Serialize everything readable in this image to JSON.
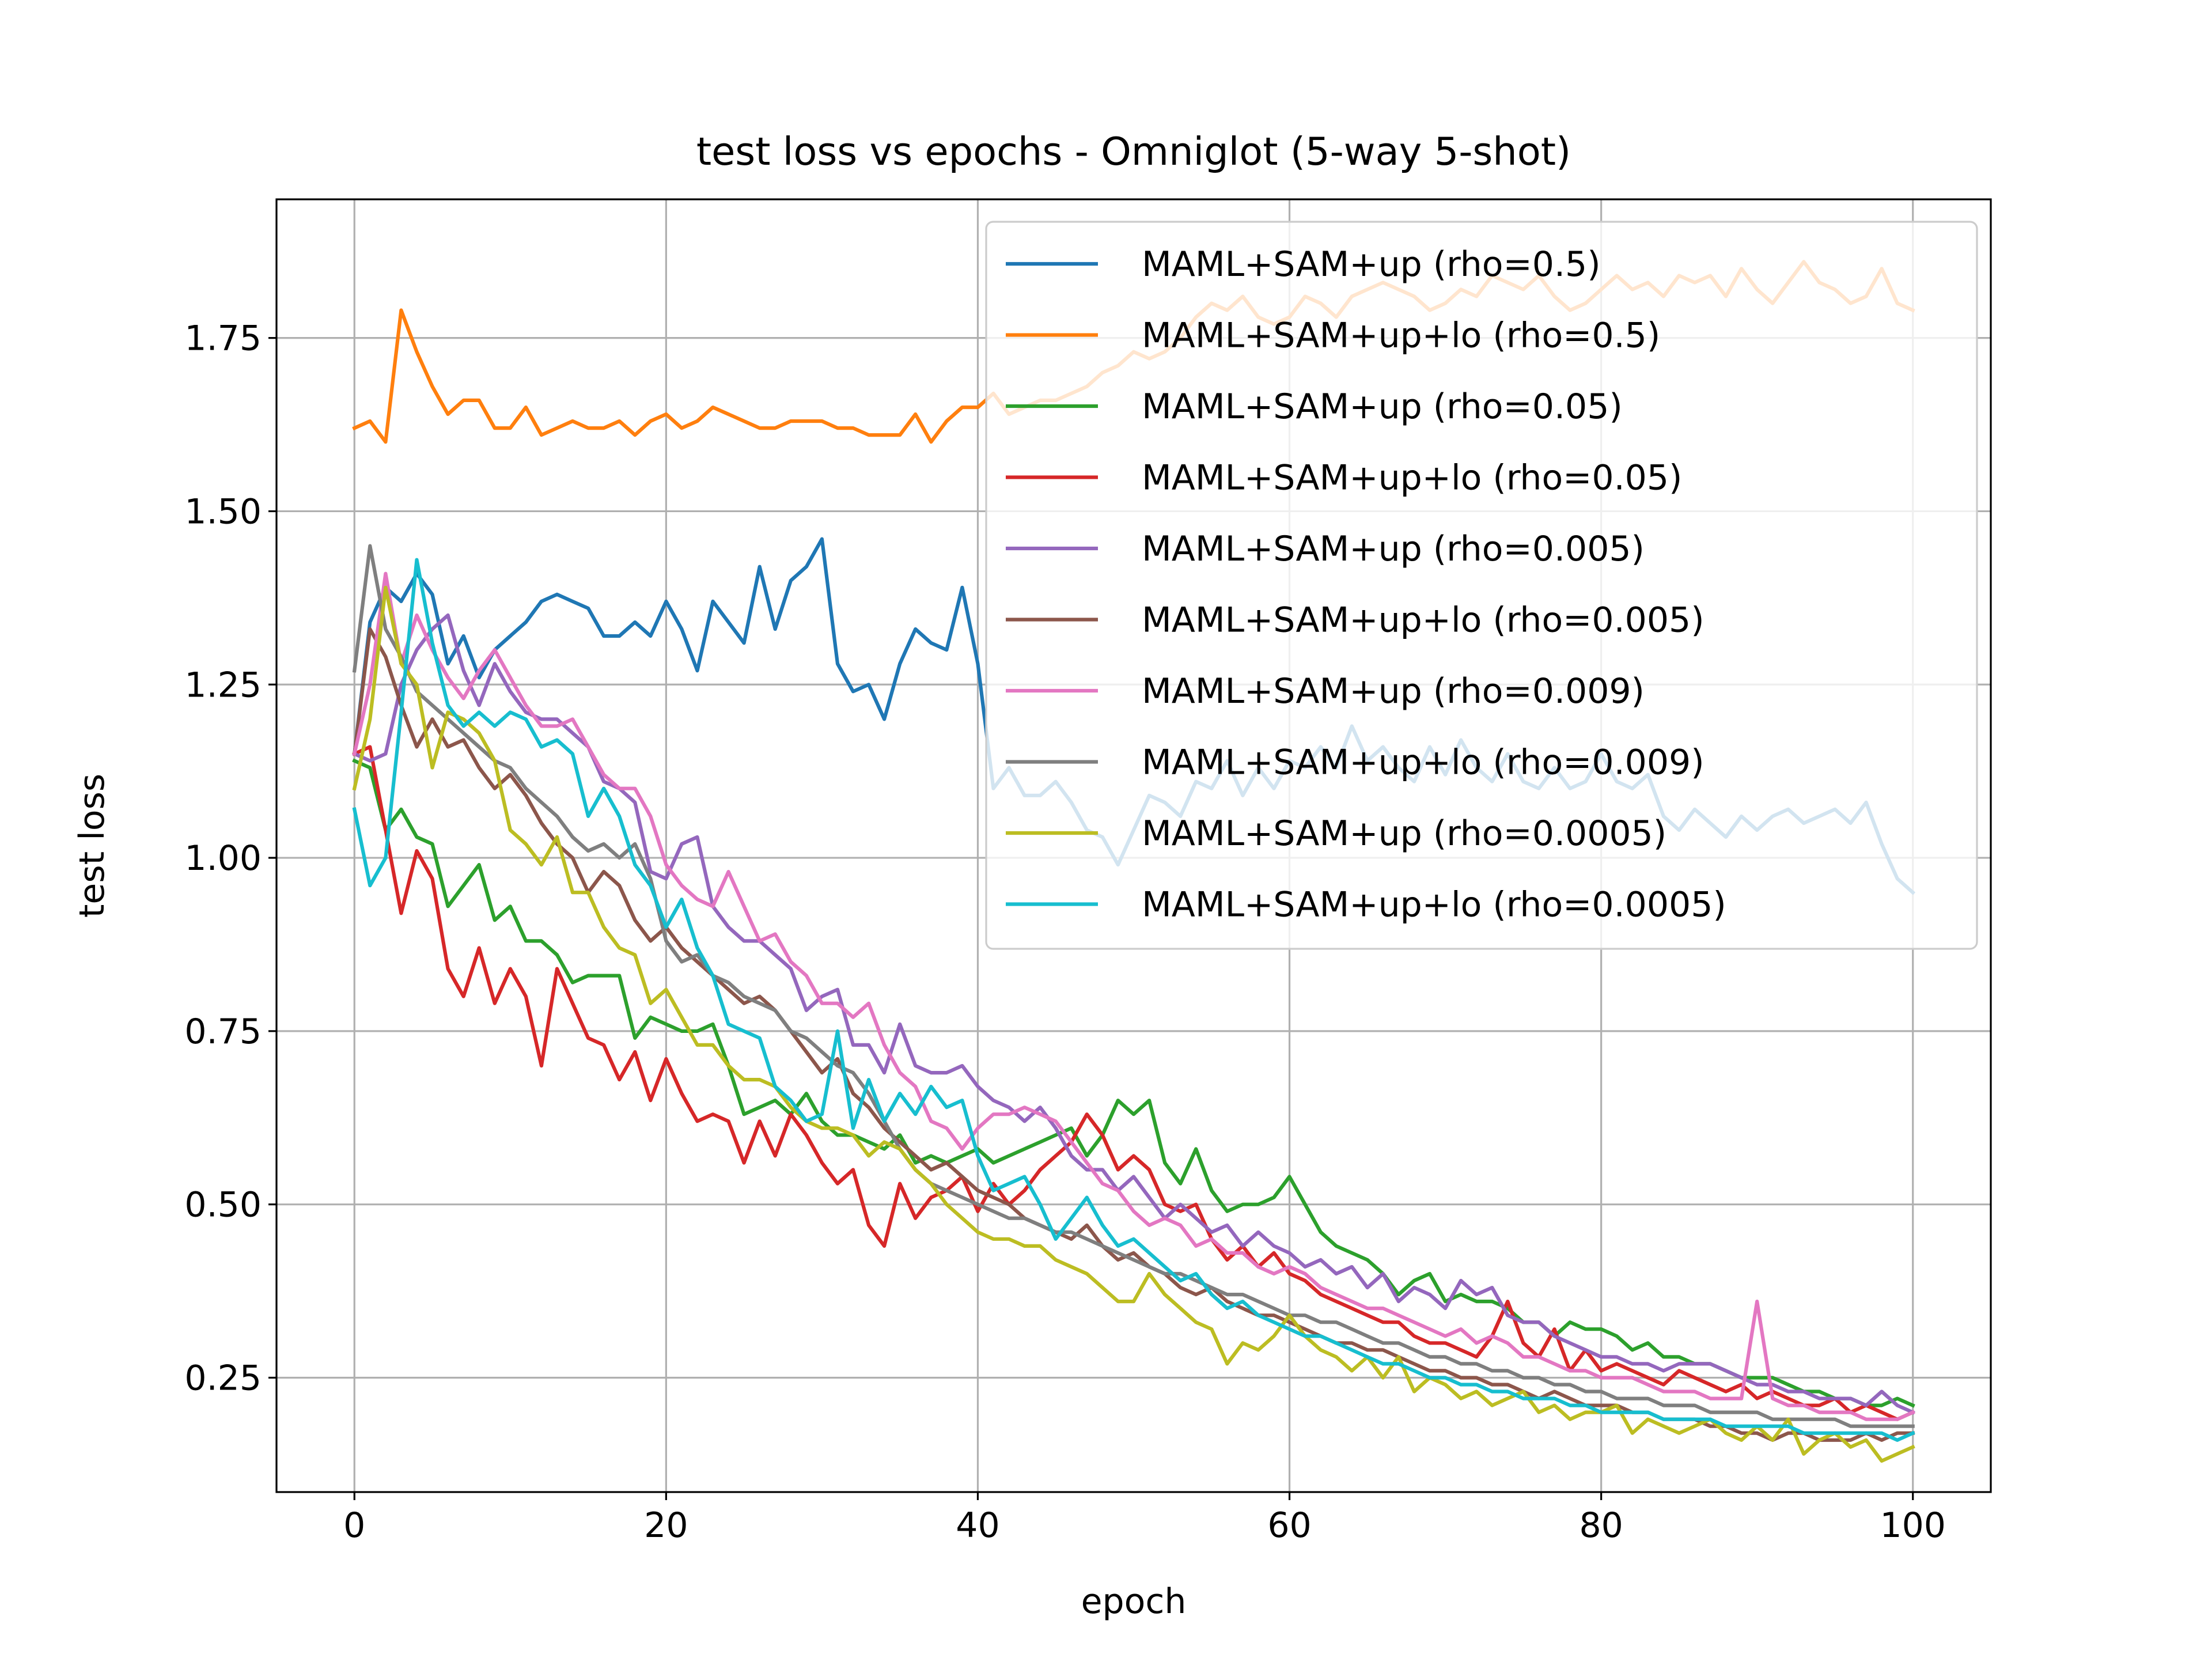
{
  "chart_data": {
    "type": "line",
    "title": "test loss vs epochs - Omniglot (5-way 5-shot)",
    "xlabel": "epoch",
    "ylabel": "test loss",
    "xlim": [
      -5,
      105
    ],
    "ylim": [
      0.085,
      1.95
    ],
    "xticks": [
      0,
      20,
      40,
      60,
      80,
      100
    ],
    "yticks": [
      0.25,
      0.5,
      0.75,
      1.0,
      1.25,
      1.5,
      1.75
    ],
    "xtick_labels": [
      "0",
      "20",
      "40",
      "60",
      "80",
      "100"
    ],
    "ytick_labels": [
      "0.25",
      "0.50",
      "0.75",
      "1.00",
      "1.25",
      "1.50",
      "1.75"
    ],
    "grid": true,
    "legend_position": "top-right",
    "x": [
      0,
      1,
      2,
      3,
      4,
      5,
      6,
      7,
      8,
      9,
      10,
      11,
      12,
      13,
      14,
      15,
      16,
      17,
      18,
      19,
      20,
      21,
      22,
      23,
      24,
      25,
      26,
      27,
      28,
      29,
      30,
      31,
      32,
      33,
      34,
      35,
      36,
      37,
      38,
      39,
      40,
      41,
      42,
      43,
      44,
      45,
      46,
      47,
      48,
      49,
      50,
      51,
      52,
      53,
      54,
      55,
      56,
      57,
      58,
      59,
      60,
      61,
      62,
      63,
      64,
      65,
      66,
      67,
      68,
      69,
      70,
      71,
      72,
      73,
      74,
      75,
      76,
      77,
      78,
      79,
      80,
      81,
      82,
      83,
      84,
      85,
      86,
      87,
      88,
      89,
      90,
      91,
      92,
      93,
      94,
      95,
      96,
      97,
      98,
      99,
      100
    ],
    "series": [
      {
        "name": "MAML+SAM+up (rho=0.5)",
        "color": "#1f77b4",
        "values": [
          1.15,
          1.34,
          1.39,
          1.37,
          1.41,
          1.38,
          1.28,
          1.32,
          1.26,
          1.3,
          1.32,
          1.34,
          1.37,
          1.38,
          1.37,
          1.36,
          1.32,
          1.32,
          1.34,
          1.32,
          1.37,
          1.33,
          1.27,
          1.37,
          1.34,
          1.31,
          1.42,
          1.33,
          1.4,
          1.42,
          1.46,
          1.28,
          1.24,
          1.25,
          1.2,
          1.28,
          1.33,
          1.31,
          1.3,
          1.39,
          1.28,
          1.1,
          1.13,
          1.09,
          1.09,
          1.11,
          1.08,
          1.04,
          1.03,
          0.99,
          1.04,
          1.09,
          1.08,
          1.06,
          1.11,
          1.1,
          1.14,
          1.09,
          1.13,
          1.1,
          1.14,
          1.13,
          1.16,
          1.13,
          1.19,
          1.14,
          1.16,
          1.13,
          1.11,
          1.16,
          1.12,
          1.17,
          1.13,
          1.11,
          1.15,
          1.11,
          1.1,
          1.13,
          1.1,
          1.11,
          1.15,
          1.11,
          1.1,
          1.12,
          1.06,
          1.04,
          1.07,
          1.05,
          1.03,
          1.06,
          1.04,
          1.06,
          1.07,
          1.05,
          1.06,
          1.07,
          1.05,
          1.08,
          1.02,
          0.97,
          0.95
        ]
      },
      {
        "name": "MAML+SAM+up+lo (rho=0.5)",
        "color": "#ff7f0e",
        "values": [
          1.62,
          1.63,
          1.6,
          1.79,
          1.73,
          1.68,
          1.64,
          1.66,
          1.66,
          1.62,
          1.62,
          1.65,
          1.61,
          1.62,
          1.63,
          1.62,
          1.62,
          1.63,
          1.61,
          1.63,
          1.64,
          1.62,
          1.63,
          1.65,
          1.64,
          1.63,
          1.62,
          1.62,
          1.63,
          1.63,
          1.63,
          1.62,
          1.62,
          1.61,
          1.61,
          1.61,
          1.64,
          1.6,
          1.63,
          1.65,
          1.65,
          1.67,
          1.64,
          1.65,
          1.66,
          1.66,
          1.67,
          1.68,
          1.7,
          1.71,
          1.73,
          1.72,
          1.73,
          1.75,
          1.78,
          1.8,
          1.79,
          1.81,
          1.78,
          1.77,
          1.78,
          1.81,
          1.8,
          1.78,
          1.81,
          1.82,
          1.83,
          1.82,
          1.81,
          1.79,
          1.8,
          1.82,
          1.81,
          1.84,
          1.83,
          1.82,
          1.84,
          1.81,
          1.79,
          1.8,
          1.82,
          1.84,
          1.82,
          1.83,
          1.81,
          1.84,
          1.83,
          1.84,
          1.81,
          1.85,
          1.82,
          1.8,
          1.83,
          1.86,
          1.83,
          1.82,
          1.8,
          1.81,
          1.85,
          1.8,
          1.79
        ]
      },
      {
        "name": "MAML+SAM+up (rho=0.05)",
        "color": "#2ca02c",
        "values": [
          1.14,
          1.13,
          1.04,
          1.07,
          1.03,
          1.02,
          0.93,
          0.96,
          0.99,
          0.91,
          0.93,
          0.88,
          0.88,
          0.86,
          0.82,
          0.83,
          0.83,
          0.83,
          0.74,
          0.77,
          0.76,
          0.75,
          0.75,
          0.76,
          0.7,
          0.63,
          0.64,
          0.65,
          0.63,
          0.66,
          0.62,
          0.6,
          0.6,
          0.59,
          0.58,
          0.6,
          0.56,
          0.57,
          0.56,
          0.57,
          0.58,
          0.56,
          0.57,
          0.58,
          0.59,
          0.6,
          0.61,
          0.57,
          0.6,
          0.65,
          0.63,
          0.65,
          0.56,
          0.53,
          0.58,
          0.52,
          0.49,
          0.5,
          0.5,
          0.51,
          0.54,
          0.5,
          0.46,
          0.44,
          0.43,
          0.42,
          0.4,
          0.37,
          0.39,
          0.4,
          0.36,
          0.37,
          0.36,
          0.36,
          0.35,
          0.33,
          0.33,
          0.31,
          0.33,
          0.32,
          0.32,
          0.31,
          0.29,
          0.3,
          0.28,
          0.28,
          0.27,
          0.27,
          0.26,
          0.25,
          0.25,
          0.25,
          0.24,
          0.23,
          0.23,
          0.22,
          0.22,
          0.21,
          0.21,
          0.22,
          0.21
        ]
      },
      {
        "name": "MAML+SAM+up+lo (rho=0.05)",
        "color": "#d62728",
        "values": [
          1.15,
          1.16,
          1.04,
          0.92,
          1.01,
          0.97,
          0.84,
          0.8,
          0.87,
          0.79,
          0.84,
          0.8,
          0.7,
          0.84,
          0.79,
          0.74,
          0.73,
          0.68,
          0.72,
          0.65,
          0.71,
          0.66,
          0.62,
          0.63,
          0.62,
          0.56,
          0.62,
          0.57,
          0.63,
          0.6,
          0.56,
          0.53,
          0.55,
          0.47,
          0.44,
          0.53,
          0.48,
          0.51,
          0.52,
          0.54,
          0.49,
          0.53,
          0.5,
          0.52,
          0.55,
          0.57,
          0.59,
          0.63,
          0.6,
          0.55,
          0.57,
          0.55,
          0.5,
          0.49,
          0.5,
          0.45,
          0.42,
          0.44,
          0.41,
          0.43,
          0.4,
          0.39,
          0.37,
          0.36,
          0.35,
          0.34,
          0.33,
          0.33,
          0.31,
          0.3,
          0.3,
          0.29,
          0.28,
          0.31,
          0.36,
          0.3,
          0.28,
          0.32,
          0.26,
          0.29,
          0.26,
          0.27,
          0.26,
          0.25,
          0.24,
          0.26,
          0.25,
          0.24,
          0.23,
          0.24,
          0.22,
          0.23,
          0.22,
          0.21,
          0.21,
          0.22,
          0.2,
          0.21,
          0.2,
          0.19,
          0.2
        ]
      },
      {
        "name": "MAML+SAM+up (rho=0.005)",
        "color": "#9467bd",
        "values": [
          1.15,
          1.14,
          1.15,
          1.25,
          1.3,
          1.33,
          1.35,
          1.27,
          1.22,
          1.28,
          1.24,
          1.21,
          1.2,
          1.2,
          1.18,
          1.16,
          1.11,
          1.1,
          1.08,
          0.98,
          0.97,
          1.02,
          1.03,
          0.93,
          0.9,
          0.88,
          0.88,
          0.86,
          0.84,
          0.78,
          0.8,
          0.81,
          0.73,
          0.73,
          0.69,
          0.76,
          0.7,
          0.69,
          0.69,
          0.7,
          0.67,
          0.65,
          0.64,
          0.62,
          0.64,
          0.61,
          0.57,
          0.55,
          0.55,
          0.52,
          0.54,
          0.51,
          0.48,
          0.5,
          0.48,
          0.46,
          0.47,
          0.44,
          0.46,
          0.44,
          0.43,
          0.41,
          0.42,
          0.4,
          0.41,
          0.38,
          0.4,
          0.36,
          0.38,
          0.37,
          0.35,
          0.39,
          0.37,
          0.38,
          0.34,
          0.33,
          0.33,
          0.31,
          0.3,
          0.29,
          0.28,
          0.28,
          0.27,
          0.27,
          0.26,
          0.27,
          0.27,
          0.27,
          0.26,
          0.25,
          0.24,
          0.24,
          0.23,
          0.23,
          0.22,
          0.22,
          0.22,
          0.21,
          0.23,
          0.21,
          0.2
        ]
      },
      {
        "name": "MAML+SAM+up+lo (rho=0.005)",
        "color": "#8c564b",
        "values": [
          1.15,
          1.33,
          1.29,
          1.22,
          1.16,
          1.2,
          1.16,
          1.17,
          1.13,
          1.1,
          1.12,
          1.09,
          1.05,
          1.02,
          1.0,
          0.95,
          0.98,
          0.96,
          0.91,
          0.88,
          0.9,
          0.87,
          0.85,
          0.83,
          0.81,
          0.79,
          0.8,
          0.78,
          0.75,
          0.72,
          0.69,
          0.71,
          0.66,
          0.64,
          0.61,
          0.59,
          0.57,
          0.55,
          0.56,
          0.54,
          0.52,
          0.51,
          0.5,
          0.48,
          0.47,
          0.46,
          0.45,
          0.47,
          0.44,
          0.42,
          0.43,
          0.41,
          0.4,
          0.38,
          0.37,
          0.38,
          0.36,
          0.35,
          0.34,
          0.34,
          0.33,
          0.32,
          0.31,
          0.3,
          0.3,
          0.29,
          0.29,
          0.28,
          0.27,
          0.26,
          0.26,
          0.25,
          0.25,
          0.24,
          0.24,
          0.23,
          0.22,
          0.23,
          0.22,
          0.21,
          0.21,
          0.21,
          0.2,
          0.2,
          0.19,
          0.19,
          0.19,
          0.18,
          0.18,
          0.17,
          0.17,
          0.16,
          0.17,
          0.17,
          0.16,
          0.16,
          0.16,
          0.17,
          0.16,
          0.17,
          0.17
        ]
      },
      {
        "name": "MAML+SAM+up (rho=0.009)",
        "color": "#e377c2",
        "values": [
          1.15,
          1.25,
          1.41,
          1.28,
          1.35,
          1.3,
          1.26,
          1.23,
          1.27,
          1.3,
          1.26,
          1.22,
          1.19,
          1.19,
          1.2,
          1.16,
          1.12,
          1.1,
          1.1,
          1.06,
          0.99,
          0.96,
          0.94,
          0.93,
          0.98,
          0.93,
          0.88,
          0.89,
          0.85,
          0.83,
          0.79,
          0.79,
          0.77,
          0.79,
          0.73,
          0.69,
          0.67,
          0.62,
          0.61,
          0.58,
          0.61,
          0.63,
          0.63,
          0.64,
          0.63,
          0.62,
          0.59,
          0.56,
          0.53,
          0.52,
          0.49,
          0.47,
          0.48,
          0.47,
          0.44,
          0.45,
          0.43,
          0.43,
          0.41,
          0.4,
          0.41,
          0.4,
          0.38,
          0.37,
          0.36,
          0.35,
          0.35,
          0.34,
          0.33,
          0.32,
          0.31,
          0.32,
          0.3,
          0.31,
          0.3,
          0.28,
          0.28,
          0.27,
          0.26,
          0.26,
          0.25,
          0.25,
          0.25,
          0.24,
          0.23,
          0.23,
          0.23,
          0.22,
          0.22,
          0.22,
          0.36,
          0.22,
          0.21,
          0.21,
          0.2,
          0.2,
          0.2,
          0.19,
          0.19,
          0.19,
          0.2
        ]
      },
      {
        "name": "MAML+SAM+up+lo (rho=0.009)",
        "color": "#7f7f7f",
        "values": [
          1.27,
          1.45,
          1.33,
          1.29,
          1.24,
          1.22,
          1.2,
          1.18,
          1.16,
          1.14,
          1.13,
          1.1,
          1.08,
          1.06,
          1.03,
          1.01,
          1.02,
          1.0,
          1.02,
          0.97,
          0.88,
          0.85,
          0.86,
          0.83,
          0.82,
          0.8,
          0.79,
          0.78,
          0.75,
          0.74,
          0.72,
          0.7,
          0.69,
          0.66,
          0.62,
          0.58,
          0.55,
          0.53,
          0.52,
          0.51,
          0.5,
          0.49,
          0.48,
          0.48,
          0.47,
          0.46,
          0.46,
          0.45,
          0.44,
          0.43,
          0.42,
          0.41,
          0.4,
          0.4,
          0.39,
          0.38,
          0.37,
          0.37,
          0.36,
          0.35,
          0.34,
          0.34,
          0.33,
          0.33,
          0.32,
          0.31,
          0.3,
          0.3,
          0.29,
          0.28,
          0.28,
          0.27,
          0.27,
          0.26,
          0.26,
          0.25,
          0.25,
          0.24,
          0.24,
          0.23,
          0.23,
          0.22,
          0.22,
          0.22,
          0.21,
          0.21,
          0.21,
          0.2,
          0.2,
          0.2,
          0.2,
          0.19,
          0.19,
          0.19,
          0.19,
          0.19,
          0.18,
          0.18,
          0.18,
          0.18,
          0.18
        ]
      },
      {
        "name": "MAML+SAM+up (rho=0.0005)",
        "color": "#bcbd22",
        "values": [
          1.1,
          1.2,
          1.39,
          1.28,
          1.25,
          1.13,
          1.21,
          1.2,
          1.18,
          1.14,
          1.04,
          1.02,
          0.99,
          1.03,
          0.95,
          0.95,
          0.9,
          0.87,
          0.86,
          0.79,
          0.81,
          0.77,
          0.73,
          0.73,
          0.7,
          0.68,
          0.68,
          0.67,
          0.64,
          0.62,
          0.61,
          0.61,
          0.6,
          0.57,
          0.59,
          0.58,
          0.55,
          0.53,
          0.5,
          0.48,
          0.46,
          0.45,
          0.45,
          0.44,
          0.44,
          0.42,
          0.41,
          0.4,
          0.38,
          0.36,
          0.36,
          0.4,
          0.37,
          0.35,
          0.33,
          0.32,
          0.27,
          0.3,
          0.29,
          0.31,
          0.34,
          0.31,
          0.29,
          0.28,
          0.26,
          0.28,
          0.25,
          0.28,
          0.23,
          0.25,
          0.24,
          0.22,
          0.23,
          0.21,
          0.22,
          0.23,
          0.2,
          0.21,
          0.19,
          0.2,
          0.2,
          0.21,
          0.17,
          0.19,
          0.18,
          0.17,
          0.18,
          0.19,
          0.17,
          0.16,
          0.18,
          0.16,
          0.19,
          0.14,
          0.16,
          0.17,
          0.15,
          0.16,
          0.13,
          0.14,
          0.15
        ]
      },
      {
        "name": "MAML+SAM+up+lo (rho=0.0005)",
        "color": "#17becf",
        "values": [
          1.07,
          0.96,
          1.0,
          1.21,
          1.43,
          1.31,
          1.22,
          1.19,
          1.21,
          1.19,
          1.21,
          1.2,
          1.16,
          1.17,
          1.15,
          1.06,
          1.1,
          1.06,
          0.99,
          0.96,
          0.9,
          0.94,
          0.87,
          0.83,
          0.76,
          0.75,
          0.74,
          0.67,
          0.65,
          0.62,
          0.63,
          0.75,
          0.61,
          0.68,
          0.62,
          0.66,
          0.63,
          0.67,
          0.64,
          0.65,
          0.57,
          0.52,
          0.53,
          0.54,
          0.5,
          0.45,
          0.48,
          0.51,
          0.47,
          0.44,
          0.45,
          0.43,
          0.41,
          0.39,
          0.4,
          0.37,
          0.35,
          0.36,
          0.34,
          0.33,
          0.32,
          0.31,
          0.31,
          0.3,
          0.29,
          0.28,
          0.27,
          0.27,
          0.26,
          0.25,
          0.25,
          0.24,
          0.24,
          0.23,
          0.23,
          0.22,
          0.22,
          0.22,
          0.21,
          0.21,
          0.2,
          0.2,
          0.2,
          0.2,
          0.19,
          0.19,
          0.19,
          0.19,
          0.18,
          0.18,
          0.18,
          0.18,
          0.18,
          0.17,
          0.17,
          0.17,
          0.17,
          0.17,
          0.17,
          0.16,
          0.17
        ]
      }
    ]
  }
}
